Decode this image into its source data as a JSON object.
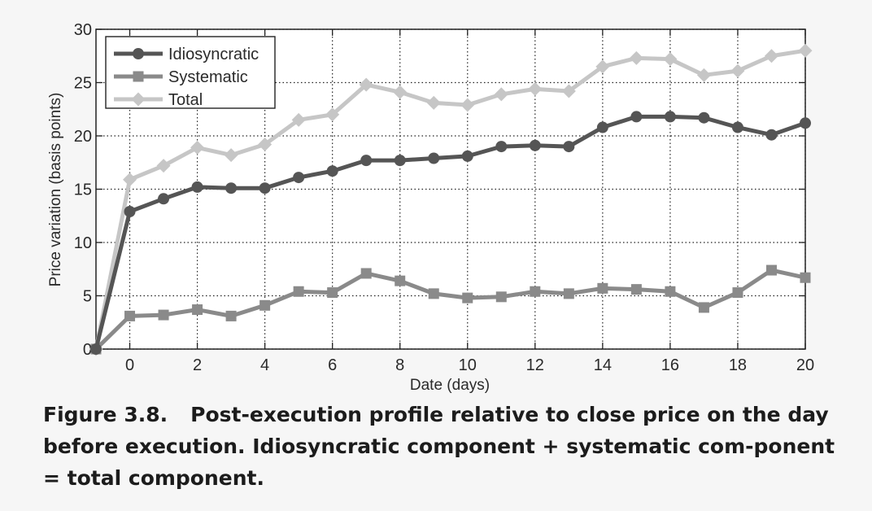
{
  "chart_data": {
    "type": "line",
    "xlabel": "Date (days)",
    "ylabel": "Price variation (basis points)",
    "xlim": [
      -1,
      20
    ],
    "ylim": [
      0,
      30
    ],
    "xticks": [
      0,
      2,
      4,
      6,
      8,
      10,
      12,
      14,
      16,
      18,
      20
    ],
    "yticks": [
      0,
      5,
      10,
      15,
      20,
      25,
      30
    ],
    "grid": true,
    "legend_position": "top-left",
    "x": [
      -1,
      0,
      1,
      2,
      3,
      4,
      5,
      6,
      7,
      8,
      9,
      10,
      11,
      12,
      13,
      14,
      15,
      16,
      17,
      18,
      19,
      20
    ],
    "series": [
      {
        "name": "Idiosyncratic",
        "marker": "circle",
        "color": "#555555",
        "values": [
          0,
          12.9,
          14.1,
          15.2,
          15.1,
          15.1,
          16.1,
          16.7,
          17.7,
          17.7,
          17.9,
          18.1,
          19.0,
          19.1,
          19.0,
          20.8,
          21.8,
          21.8,
          21.7,
          20.8,
          20.1,
          21.2
        ]
      },
      {
        "name": "Systematic",
        "marker": "square",
        "color": "#8a8a8a",
        "values": [
          0,
          3.1,
          3.2,
          3.7,
          3.1,
          4.1,
          5.4,
          5.3,
          7.1,
          6.4,
          5.2,
          4.8,
          4.9,
          5.4,
          5.2,
          5.7,
          5.6,
          5.4,
          3.9,
          5.3,
          7.4,
          6.7
        ]
      },
      {
        "name": "Total",
        "marker": "diamond",
        "color": "#c6c6c6",
        "values": [
          0,
          15.9,
          17.2,
          18.9,
          18.2,
          19.2,
          21.5,
          22.0,
          24.8,
          24.1,
          23.1,
          22.9,
          23.9,
          24.4,
          24.2,
          26.5,
          27.3,
          27.2,
          25.7,
          26.1,
          27.5,
          28.0
        ]
      }
    ]
  },
  "caption": {
    "number": "Figure 3.8.",
    "text": "Post-execution profile relative to close price on the day before execution. Idiosyncratic component + systematic com-ponent = total component."
  }
}
